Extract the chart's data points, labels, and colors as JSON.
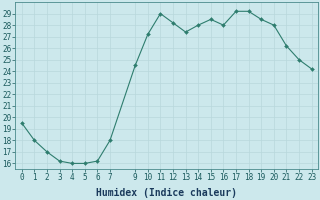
{
  "x": [
    0,
    1,
    2,
    3,
    4,
    5,
    6,
    7,
    9,
    10,
    11,
    12,
    13,
    14,
    15,
    16,
    17,
    18,
    19,
    20,
    21,
    22,
    23
  ],
  "y": [
    19.5,
    18.0,
    17.0,
    16.2,
    16.0,
    16.0,
    16.2,
    18.0,
    24.5,
    27.2,
    29.0,
    28.2,
    27.4,
    28.0,
    28.5,
    28.0,
    29.2,
    29.2,
    28.5,
    28.0,
    26.2,
    25.0,
    24.2
  ],
  "line_color": "#2e7d6e",
  "marker": "D",
  "marker_size": 2.0,
  "bg_color": "#cce8ec",
  "grid_color": "#b8d8dc",
  "xlabel": "Humidex (Indice chaleur)",
  "ylim": [
    15.5,
    30.0
  ],
  "xlim": [
    -0.5,
    23.5
  ],
  "yticks": [
    16,
    17,
    18,
    19,
    20,
    21,
    22,
    23,
    24,
    25,
    26,
    27,
    28,
    29
  ],
  "xticks": [
    0,
    1,
    2,
    3,
    4,
    5,
    6,
    7,
    9,
    10,
    11,
    12,
    13,
    14,
    15,
    16,
    17,
    18,
    19,
    20,
    21,
    22,
    23
  ],
  "tick_label_size": 5.5,
  "xlabel_size": 7.0,
  "xlabel_color": "#1a3a5c",
  "tick_color": "#1a5a5c",
  "spine_color": "#4a8a8c",
  "linewidth": 0.8
}
